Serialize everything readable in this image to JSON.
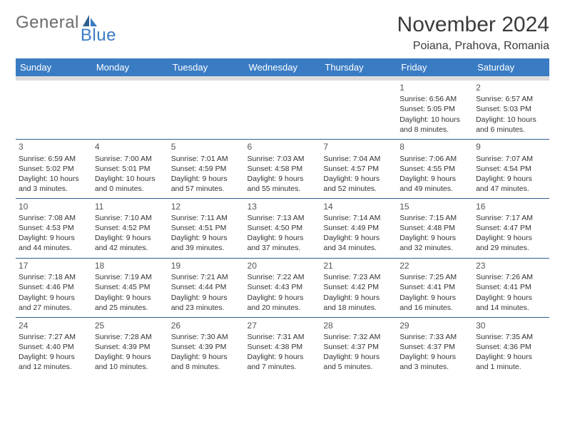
{
  "logo": {
    "general": "General",
    "blue": "Blue",
    "general_color": "#6b6b6b",
    "blue_color": "#3a7cc4"
  },
  "title": "November 2024",
  "location": "Poiana, Prahova, Romania",
  "colors": {
    "header_bg": "#3a7cc4",
    "header_text": "#ffffff",
    "week_border": "#2f5f8f",
    "header_sep": "#dcdcdc",
    "text": "#333333",
    "daynum": "#555555",
    "page_bg": "#ffffff"
  },
  "typography": {
    "title_fontsize": 30,
    "location_fontsize": 16,
    "header_fontsize": 13,
    "cell_fontsize": 10.5,
    "daynum_fontsize": 12
  },
  "day_headers": [
    "Sunday",
    "Monday",
    "Tuesday",
    "Wednesday",
    "Thursday",
    "Friday",
    "Saturday"
  ],
  "weeks": [
    [
      null,
      null,
      null,
      null,
      null,
      {
        "n": "1",
        "sunrise": "Sunrise: 6:56 AM",
        "sunset": "Sunset: 5:05 PM",
        "daylight": "Daylight: 10 hours and 8 minutes."
      },
      {
        "n": "2",
        "sunrise": "Sunrise: 6:57 AM",
        "sunset": "Sunset: 5:03 PM",
        "daylight": "Daylight: 10 hours and 6 minutes."
      }
    ],
    [
      {
        "n": "3",
        "sunrise": "Sunrise: 6:59 AM",
        "sunset": "Sunset: 5:02 PM",
        "daylight": "Daylight: 10 hours and 3 minutes."
      },
      {
        "n": "4",
        "sunrise": "Sunrise: 7:00 AM",
        "sunset": "Sunset: 5:01 PM",
        "daylight": "Daylight: 10 hours and 0 minutes."
      },
      {
        "n": "5",
        "sunrise": "Sunrise: 7:01 AM",
        "sunset": "Sunset: 4:59 PM",
        "daylight": "Daylight: 9 hours and 57 minutes."
      },
      {
        "n": "6",
        "sunrise": "Sunrise: 7:03 AM",
        "sunset": "Sunset: 4:58 PM",
        "daylight": "Daylight: 9 hours and 55 minutes."
      },
      {
        "n": "7",
        "sunrise": "Sunrise: 7:04 AM",
        "sunset": "Sunset: 4:57 PM",
        "daylight": "Daylight: 9 hours and 52 minutes."
      },
      {
        "n": "8",
        "sunrise": "Sunrise: 7:06 AM",
        "sunset": "Sunset: 4:55 PM",
        "daylight": "Daylight: 9 hours and 49 minutes."
      },
      {
        "n": "9",
        "sunrise": "Sunrise: 7:07 AM",
        "sunset": "Sunset: 4:54 PM",
        "daylight": "Daylight: 9 hours and 47 minutes."
      }
    ],
    [
      {
        "n": "10",
        "sunrise": "Sunrise: 7:08 AM",
        "sunset": "Sunset: 4:53 PM",
        "daylight": "Daylight: 9 hours and 44 minutes."
      },
      {
        "n": "11",
        "sunrise": "Sunrise: 7:10 AM",
        "sunset": "Sunset: 4:52 PM",
        "daylight": "Daylight: 9 hours and 42 minutes."
      },
      {
        "n": "12",
        "sunrise": "Sunrise: 7:11 AM",
        "sunset": "Sunset: 4:51 PM",
        "daylight": "Daylight: 9 hours and 39 minutes."
      },
      {
        "n": "13",
        "sunrise": "Sunrise: 7:13 AM",
        "sunset": "Sunset: 4:50 PM",
        "daylight": "Daylight: 9 hours and 37 minutes."
      },
      {
        "n": "14",
        "sunrise": "Sunrise: 7:14 AM",
        "sunset": "Sunset: 4:49 PM",
        "daylight": "Daylight: 9 hours and 34 minutes."
      },
      {
        "n": "15",
        "sunrise": "Sunrise: 7:15 AM",
        "sunset": "Sunset: 4:48 PM",
        "daylight": "Daylight: 9 hours and 32 minutes."
      },
      {
        "n": "16",
        "sunrise": "Sunrise: 7:17 AM",
        "sunset": "Sunset: 4:47 PM",
        "daylight": "Daylight: 9 hours and 29 minutes."
      }
    ],
    [
      {
        "n": "17",
        "sunrise": "Sunrise: 7:18 AM",
        "sunset": "Sunset: 4:46 PM",
        "daylight": "Daylight: 9 hours and 27 minutes."
      },
      {
        "n": "18",
        "sunrise": "Sunrise: 7:19 AM",
        "sunset": "Sunset: 4:45 PM",
        "daylight": "Daylight: 9 hours and 25 minutes."
      },
      {
        "n": "19",
        "sunrise": "Sunrise: 7:21 AM",
        "sunset": "Sunset: 4:44 PM",
        "daylight": "Daylight: 9 hours and 23 minutes."
      },
      {
        "n": "20",
        "sunrise": "Sunrise: 7:22 AM",
        "sunset": "Sunset: 4:43 PM",
        "daylight": "Daylight: 9 hours and 20 minutes."
      },
      {
        "n": "21",
        "sunrise": "Sunrise: 7:23 AM",
        "sunset": "Sunset: 4:42 PM",
        "daylight": "Daylight: 9 hours and 18 minutes."
      },
      {
        "n": "22",
        "sunrise": "Sunrise: 7:25 AM",
        "sunset": "Sunset: 4:41 PM",
        "daylight": "Daylight: 9 hours and 16 minutes."
      },
      {
        "n": "23",
        "sunrise": "Sunrise: 7:26 AM",
        "sunset": "Sunset: 4:41 PM",
        "daylight": "Daylight: 9 hours and 14 minutes."
      }
    ],
    [
      {
        "n": "24",
        "sunrise": "Sunrise: 7:27 AM",
        "sunset": "Sunset: 4:40 PM",
        "daylight": "Daylight: 9 hours and 12 minutes."
      },
      {
        "n": "25",
        "sunrise": "Sunrise: 7:28 AM",
        "sunset": "Sunset: 4:39 PM",
        "daylight": "Daylight: 9 hours and 10 minutes."
      },
      {
        "n": "26",
        "sunrise": "Sunrise: 7:30 AM",
        "sunset": "Sunset: 4:39 PM",
        "daylight": "Daylight: 9 hours and 8 minutes."
      },
      {
        "n": "27",
        "sunrise": "Sunrise: 7:31 AM",
        "sunset": "Sunset: 4:38 PM",
        "daylight": "Daylight: 9 hours and 7 minutes."
      },
      {
        "n": "28",
        "sunrise": "Sunrise: 7:32 AM",
        "sunset": "Sunset: 4:37 PM",
        "daylight": "Daylight: 9 hours and 5 minutes."
      },
      {
        "n": "29",
        "sunrise": "Sunrise: 7:33 AM",
        "sunset": "Sunset: 4:37 PM",
        "daylight": "Daylight: 9 hours and 3 minutes."
      },
      {
        "n": "30",
        "sunrise": "Sunrise: 7:35 AM",
        "sunset": "Sunset: 4:36 PM",
        "daylight": "Daylight: 9 hours and 1 minute."
      }
    ]
  ]
}
